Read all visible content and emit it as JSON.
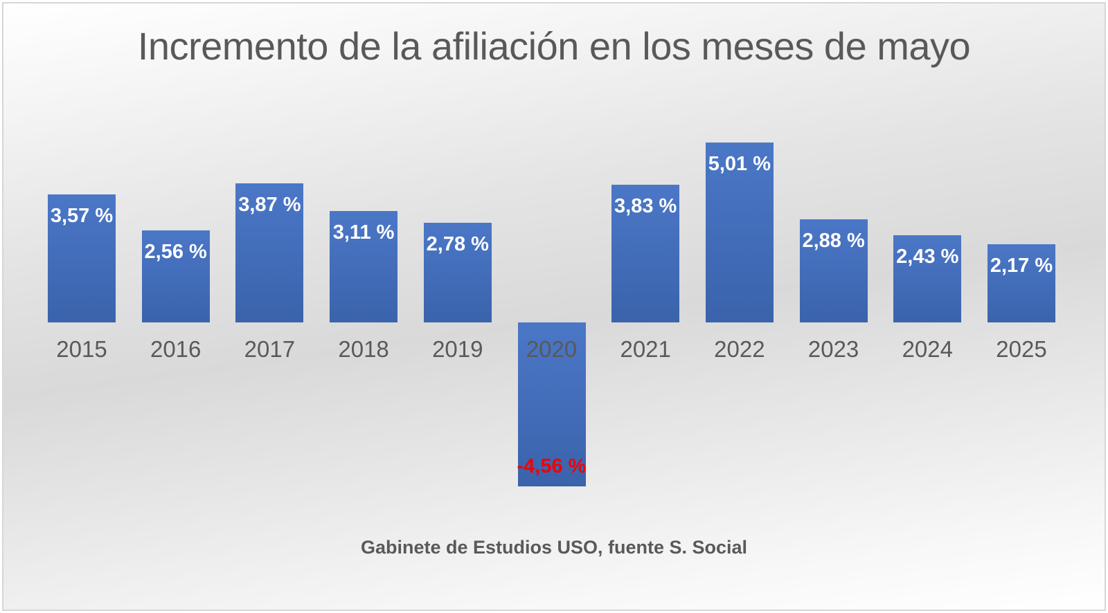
{
  "chart": {
    "title": "Incremento de la afiliación en los meses de mayo",
    "source": "Gabinete de Estudios USO, fuente S. Social"
  },
  "chart_data": {
    "type": "bar",
    "title": "Incremento de la afiliación en los meses de mayo",
    "categories": [
      "2015",
      "2016",
      "2017",
      "2018",
      "2019",
      "2020",
      "2021",
      "2022",
      "2023",
      "2024",
      "2025"
    ],
    "values": [
      3.57,
      2.56,
      3.87,
      3.11,
      2.78,
      -4.56,
      3.83,
      5.01,
      2.88,
      2.43,
      2.17
    ],
    "labels": [
      "3,57 %",
      "2,56 %",
      "3,87 %",
      "3,11 %",
      "2,78 %",
      "-4,56 %",
      "3,83 %",
      "5,01 %",
      "2,88 %",
      "2,43 %",
      "2,17 %"
    ],
    "xlabel": "",
    "ylabel": "",
    "ylim": [
      -5,
      5.5
    ],
    "grid": false,
    "legend": "none",
    "annotation": "Gabinete de Estudios USO, fuente S. Social",
    "style": {
      "bar_fill_top": "#4b77c7",
      "bar_fill_bottom": "#3a63ab",
      "positive_label_color": "#ffffff",
      "negative_label_color": "#f10000",
      "axis_text_color": "#595959",
      "background_mid": "#d9d9d9"
    }
  }
}
